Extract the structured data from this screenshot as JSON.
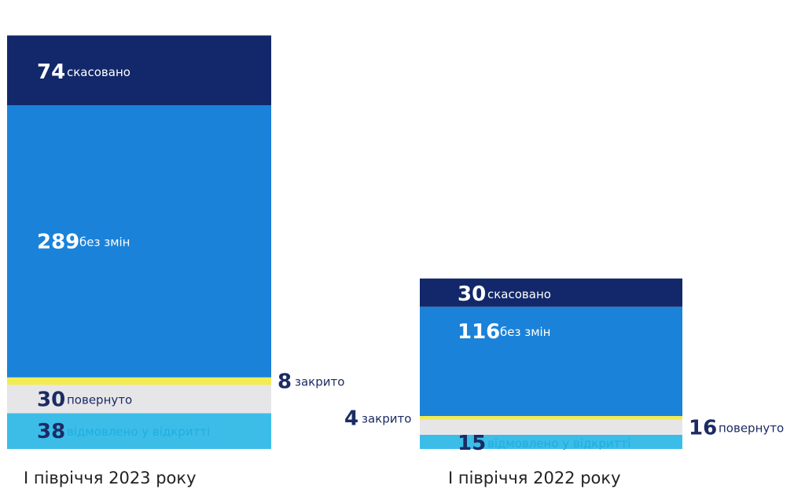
{
  "chart_data": {
    "type": "bar",
    "stacked": true,
    "categories": [
      "I півріччя 2023 року",
      "I півріччя 2022 року"
    ],
    "series": [
      {
        "name": "відмовлено у відкритті",
        "values": [
          38,
          15
        ],
        "color": "#3cbde8",
        "label_color": "#1faee0"
      },
      {
        "name": "повернуто",
        "values": [
          30,
          16
        ],
        "color": "#e6e6e9",
        "label_color": "#1b2b63"
      },
      {
        "name": "закрито",
        "values": [
          8,
          4
        ],
        "color": "#f1ec55",
        "label_color": "#1b2b63"
      },
      {
        "name": "без змін",
        "values": [
          289,
          116
        ],
        "color": "#1b82d9",
        "label_color": "#ffffff"
      },
      {
        "name": "скасовано",
        "values": [
          74,
          30
        ],
        "color": "#12286a",
        "label_color": "#ffffff"
      }
    ],
    "title": "",
    "xlabel": "",
    "ylabel": ""
  }
}
